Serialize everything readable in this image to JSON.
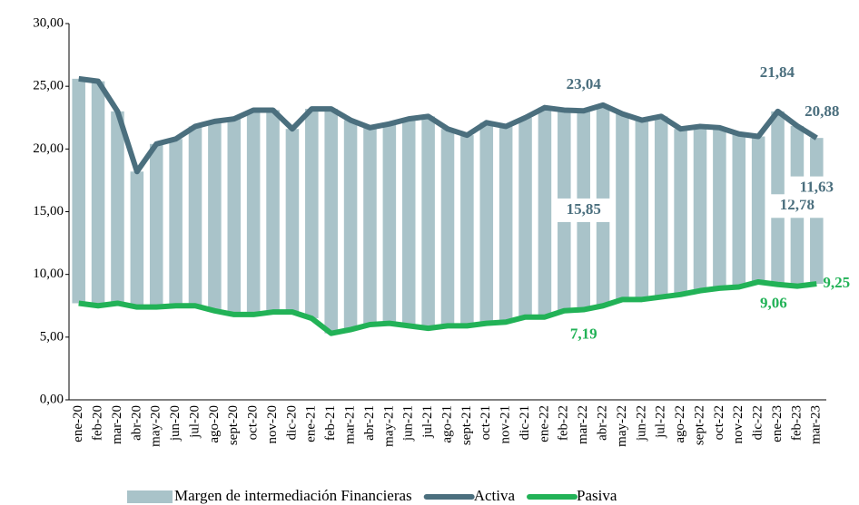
{
  "chart_data": {
    "type": "bar",
    "categories": [
      "ene-20",
      "feb-20",
      "mar-20",
      "abr-20",
      "may-20",
      "jun-20",
      "jul-20",
      "ago-20",
      "sept-20",
      "oct-20",
      "nov-20",
      "dic-20",
      "ene-21",
      "feb-21",
      "mar-21",
      "abr-21",
      "may-21",
      "jun-21",
      "jul-21",
      "ago-21",
      "sept-21",
      "oct-21",
      "nov-21",
      "dic-21",
      "ene-22",
      "feb-22",
      "mar-22",
      "abr-22",
      "may-22",
      "jun-22",
      "jul-22",
      "ago-22",
      "sept-22",
      "oct-22",
      "nov-22",
      "dic-22",
      "ene-23",
      "feb-23",
      "mar-23"
    ],
    "series": [
      {
        "name": "Margen de intermediación Financieras",
        "type": "bar",
        "color": "#a9c3c9",
        "values": [
          17.9,
          17.9,
          15.3,
          10.8,
          13.0,
          13.3,
          14.3,
          15.1,
          15.6,
          16.3,
          16.1,
          14.6,
          16.7,
          17.9,
          16.7,
          15.7,
          15.9,
          16.5,
          16.9,
          15.7,
          15.2,
          16.0,
          15.6,
          15.9,
          16.7,
          16.0,
          15.85,
          16.0,
          14.8,
          14.3,
          14.4,
          13.2,
          13.1,
          12.8,
          12.2,
          11.6,
          13.8,
          12.78,
          11.63
        ],
        "value_labels": [
          null,
          null,
          null,
          null,
          null,
          null,
          null,
          null,
          null,
          null,
          null,
          null,
          null,
          null,
          null,
          null,
          null,
          null,
          null,
          null,
          null,
          null,
          null,
          null,
          null,
          null,
          "15,85",
          null,
          null,
          null,
          null,
          null,
          null,
          null,
          null,
          null,
          null,
          "12,78",
          "11,63"
        ]
      },
      {
        "name": "Activa",
        "type": "line",
        "color": "#4b6f7e",
        "values": [
          25.6,
          25.4,
          23.0,
          18.2,
          20.4,
          20.8,
          21.8,
          22.2,
          22.4,
          23.1,
          23.1,
          21.6,
          23.2,
          23.2,
          22.3,
          21.7,
          22.0,
          22.4,
          22.6,
          21.6,
          21.1,
          22.1,
          21.8,
          22.5,
          23.3,
          23.1,
          23.04,
          23.5,
          22.8,
          22.3,
          22.6,
          21.6,
          21.8,
          21.7,
          21.2,
          21.0,
          23.0,
          21.84,
          20.88
        ],
        "value_labels": [
          null,
          null,
          null,
          null,
          null,
          null,
          null,
          null,
          null,
          null,
          null,
          null,
          null,
          null,
          null,
          null,
          null,
          null,
          null,
          null,
          null,
          null,
          null,
          null,
          null,
          null,
          "23,04",
          null,
          null,
          null,
          null,
          null,
          null,
          null,
          null,
          null,
          null,
          "21,84",
          "20,88"
        ]
      },
      {
        "name": "Pasiva",
        "type": "line",
        "color": "#22b257",
        "values": [
          7.7,
          7.5,
          7.7,
          7.4,
          7.4,
          7.5,
          7.5,
          7.1,
          6.8,
          6.8,
          7.0,
          7.0,
          6.5,
          5.3,
          5.6,
          6.0,
          6.1,
          5.9,
          5.7,
          5.9,
          5.9,
          6.1,
          6.2,
          6.6,
          6.6,
          7.1,
          7.19,
          7.5,
          8.0,
          8.0,
          8.2,
          8.4,
          8.7,
          8.9,
          9.0,
          9.4,
          9.2,
          9.06,
          9.25
        ],
        "value_labels": [
          null,
          null,
          null,
          null,
          null,
          null,
          null,
          null,
          null,
          null,
          null,
          null,
          null,
          null,
          null,
          null,
          null,
          null,
          null,
          null,
          null,
          null,
          null,
          null,
          null,
          null,
          "7,19",
          null,
          null,
          null,
          null,
          null,
          null,
          null,
          null,
          null,
          null,
          "9,06",
          "9,25"
        ]
      }
    ],
    "ylim": [
      0,
      30
    ],
    "yticks": [
      {
        "value": 0,
        "label": "0,00"
      },
      {
        "value": 5,
        "label": "5,00"
      },
      {
        "value": 10,
        "label": "10,00"
      },
      {
        "value": 15,
        "label": "15,00"
      },
      {
        "value": 20,
        "label": "20,00"
      },
      {
        "value": 25,
        "label": "25,00"
      },
      {
        "value": 30,
        "label": "30,00"
      }
    ],
    "legend": "bottom"
  }
}
